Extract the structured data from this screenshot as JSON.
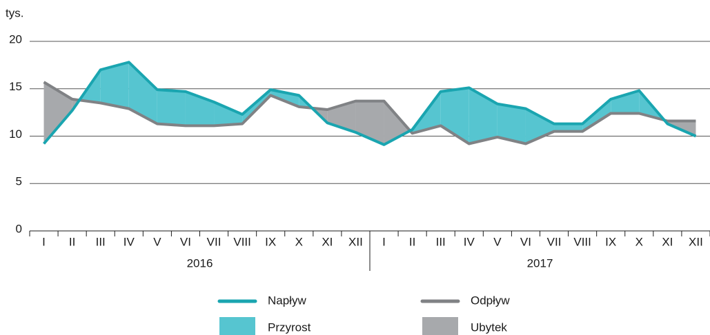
{
  "chart_data": {
    "type": "line",
    "y_label": "tys.",
    "categories": [
      "I",
      "II",
      "III",
      "IV",
      "V",
      "VI",
      "VII",
      "VIII",
      "IX",
      "X",
      "XI",
      "XII",
      "I",
      "II",
      "III",
      "IV",
      "V",
      "VI",
      "VII",
      "VIII",
      "IX",
      "X",
      "XI",
      "XII"
    ],
    "year_groups": [
      "2016",
      "2017"
    ],
    "series": [
      {
        "name": "Napływ",
        "color": "#1aa5b0",
        "values": [
          9.2,
          12.7,
          17.0,
          17.8,
          14.9,
          14.7,
          13.6,
          12.3,
          14.9,
          14.3,
          11.4,
          10.4,
          9.1,
          10.7,
          14.7,
          15.1,
          13.4,
          12.9,
          11.3,
          11.3,
          13.9,
          14.8,
          11.3,
          10.0
        ]
      },
      {
        "name": "Odpływ",
        "color": "#808285",
        "values": [
          15.7,
          13.9,
          13.5,
          12.9,
          11.3,
          11.1,
          11.1,
          11.3,
          14.3,
          13.1,
          12.8,
          13.7,
          13.7,
          10.3,
          11.1,
          9.2,
          9.9,
          9.2,
          10.5,
          10.5,
          12.4,
          12.4,
          11.6,
          11.6
        ]
      }
    ],
    "areas": [
      {
        "name": "Przyrost",
        "color": "#56c5d0"
      },
      {
        "name": "Ubytek",
        "color": "#a7a9ac"
      }
    ],
    "ylim": [
      0,
      20
    ],
    "yticks": [
      0,
      5,
      10,
      15,
      20
    ],
    "grid": true
  }
}
